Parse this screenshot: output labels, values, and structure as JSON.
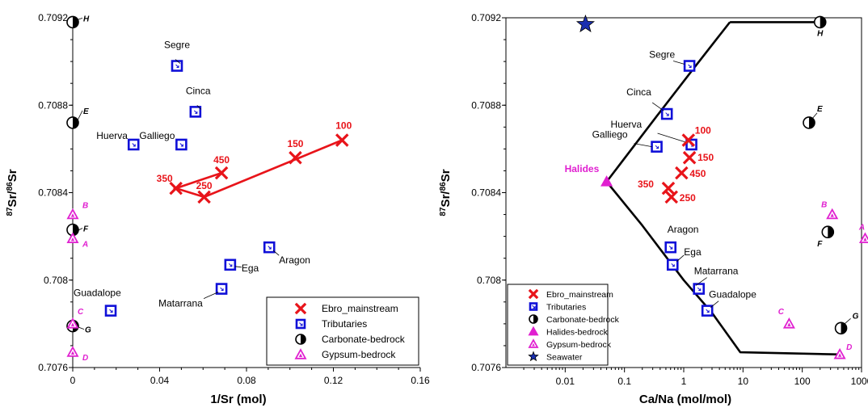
{
  "colors": {
    "ebro": "#e8141a",
    "tributary": "#1010d8",
    "carbonate": "#000000",
    "halide": "#e020d0",
    "gypsum": "#e020d0",
    "seawater": "#1a2fb0"
  },
  "chart_data": [
    {
      "type": "scatter",
      "xlabel": "1/Sr (mol)",
      "ylabel_parts": {
        "sup1": "87",
        "mid": "Sr/",
        "sup2": "86",
        "end": "Sr"
      },
      "xlim": [
        0,
        0.16
      ],
      "ylim": [
        0.7076,
        0.7092
      ],
      "x_ticks": [
        "0",
        "0.04",
        "0.08",
        "0.12",
        "0.16"
      ],
      "y_ticks": [
        "0.7076",
        "0.708",
        "0.7084",
        "0.7088",
        "0.7092"
      ],
      "ebro": [
        {
          "label": "350",
          "x": 0.0475,
          "y": 0.70842
        },
        {
          "label": "250",
          "x": 0.0605,
          "y": 0.70838
        },
        {
          "label": "450",
          "x": 0.0685,
          "y": 0.70849
        },
        {
          "label": "150",
          "x": 0.1025,
          "y": 0.70856
        },
        {
          "label": "100",
          "x": 0.124,
          "y": 0.70864
        }
      ],
      "ebro_line": [
        [
          0.0685,
          0.70849
        ],
        [
          0.0475,
          0.70842
        ],
        [
          0.0605,
          0.70838
        ],
        [
          0.124,
          0.70864
        ]
      ],
      "tributaries": [
        {
          "label": "Segre",
          "x": 0.048,
          "y": 0.70898
        },
        {
          "label": "Cinca",
          "x": 0.0565,
          "y": 0.70877
        },
        {
          "label": "Huerva",
          "x": 0.028,
          "y": 0.70862
        },
        {
          "label": "Galliego",
          "x": 0.05,
          "y": 0.70862
        },
        {
          "label": "Aragon",
          "x": 0.0905,
          "y": 0.70815
        },
        {
          "label": "Ega",
          "x": 0.0725,
          "y": 0.70807
        },
        {
          "label": "Matarrana",
          "x": 0.0685,
          "y": 0.70796
        },
        {
          "label": "Guadalope",
          "x": 0.0175,
          "y": 0.70786
        }
      ],
      "carbonate": [
        {
          "label": "H",
          "x": 0.0,
          "y": 0.70918
        },
        {
          "label": "E",
          "x": 0.0,
          "y": 0.70872
        },
        {
          "label": "F",
          "x": 0.0,
          "y": 0.70823
        },
        {
          "label": "G",
          "x": 0.0,
          "y": 0.70779
        }
      ],
      "gypsum": [
        {
          "label": "B",
          "x": 0.0,
          "y": 0.7083
        },
        {
          "label": "A",
          "x": 0.0,
          "y": 0.70819
        },
        {
          "label": "C",
          "x": 0.0,
          "y": 0.7078
        },
        {
          "label": "D",
          "x": 0.0,
          "y": 0.70767
        }
      ],
      "legend": {
        "placement": "bottom-right",
        "entries": [
          "Ebro_mainstream",
          "Tributaries",
          "Carbonate-bedrock",
          "Gypsum-bedrock"
        ]
      }
    },
    {
      "type": "scatter",
      "xlabel": "Ca/Na (mol/mol)",
      "ylabel_parts": {
        "sup1": "87",
        "mid": "Sr/",
        "sup2": "86",
        "end": "Sr"
      },
      "xscale": "log",
      "xlim": [
        0.001,
        1000
      ],
      "ylim": [
        0.7076,
        0.7092
      ],
      "x_ticks": [
        "0.01",
        "0.1",
        "1",
        "10",
        "100",
        "1000"
      ],
      "y_ticks": [
        "0.7076",
        "0.708",
        "0.7084",
        "0.7088",
        "0.7092"
      ],
      "ebro": [
        {
          "label": "100",
          "x": 1.2,
          "y": 0.70864
        },
        {
          "label": "150",
          "x": 1.25,
          "y": 0.70856
        },
        {
          "label": "450",
          "x": 0.92,
          "y": 0.70849
        },
        {
          "label": "350",
          "x": 0.55,
          "y": 0.70842
        },
        {
          "label": "250",
          "x": 0.62,
          "y": 0.70838
        }
      ],
      "tributaries": [
        {
          "label": "Segre",
          "x": 1.25,
          "y": 0.70898
        },
        {
          "label": "Cinca",
          "x": 0.52,
          "y": 0.70876
        },
        {
          "label": "Huerva",
          "x": 1.35,
          "y": 0.70862
        },
        {
          "label": "Galliego",
          "x": 0.35,
          "y": 0.70861
        },
        {
          "label": "Aragon",
          "x": 0.6,
          "y": 0.70815
        },
        {
          "label": "Ega",
          "x": 0.65,
          "y": 0.70807
        },
        {
          "label": "Matarrana",
          "x": 1.8,
          "y": 0.70796
        },
        {
          "label": "Guadalope",
          "x": 2.5,
          "y": 0.70786
        }
      ],
      "carbonate": [
        {
          "label": "H",
          "x": 200,
          "y": 0.70918
        },
        {
          "label": "E",
          "x": 130,
          "y": 0.70872
        },
        {
          "label": "F",
          "x": 270,
          "y": 0.70822
        },
        {
          "label": "G",
          "x": 450,
          "y": 0.70778
        }
      ],
      "halides": [
        {
          "label": "Halides",
          "x": 0.05,
          "y": 0.70845
        }
      ],
      "gypsum": [
        {
          "label": "B",
          "x": 320,
          "y": 0.7083
        },
        {
          "label": "A",
          "x": 1150,
          "y": 0.70819
        },
        {
          "label": "C",
          "x": 60,
          "y": 0.7078
        },
        {
          "label": "D",
          "x": 430,
          "y": 0.70766
        }
      ],
      "seawater": [
        {
          "x": 0.022,
          "y": 0.70917
        }
      ],
      "mixing_curve": [
        [
          6,
          0.70918
        ],
        [
          1.3,
          0.70895
        ],
        [
          0.35,
          0.70875
        ],
        [
          0.05,
          0.70845
        ],
        [
          0.2,
          0.70825
        ],
        [
          1,
          0.708
        ],
        [
          3,
          0.70785
        ],
        [
          9,
          0.70767
        ],
        [
          450,
          0.70766
        ]
      ],
      "mixing_curve_top": [
        [
          6,
          0.70918
        ],
        [
          200,
          0.70918
        ]
      ],
      "legend": {
        "placement": "bottom-left",
        "entries": [
          "Ebro_mainstream",
          "Tributaries",
          "Carbonate-bedrock",
          "Halides-bedrock",
          "Gypsum-bedrock",
          "Seawater"
        ]
      }
    }
  ]
}
